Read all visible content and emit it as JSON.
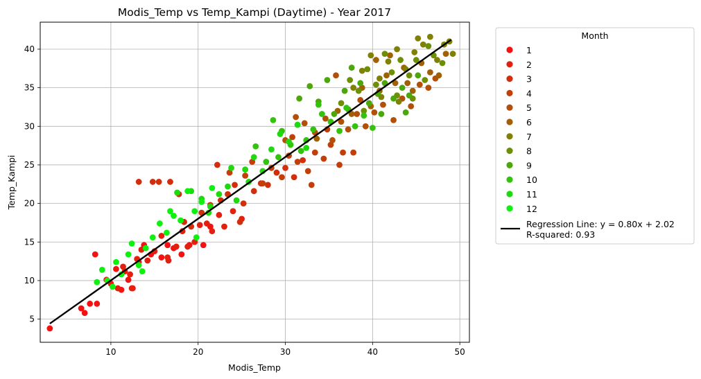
{
  "chart_data": {
    "type": "scatter",
    "title": "Modis_Temp vs Temp_Kampi (Daytime) - Year 2017",
    "xlabel": "Modis_Temp",
    "ylabel": "Temp_Kampi",
    "xlim": [
      1.9,
      51.1
    ],
    "ylim": [
      2.0,
      43.5
    ],
    "xticks": [
      10,
      20,
      30,
      40,
      50
    ],
    "yticks": [
      5,
      10,
      15,
      20,
      25,
      30,
      35,
      40
    ],
    "grid": true,
    "legend": {
      "title": "Month",
      "placement": "outside-right",
      "entries": [
        "1",
        "2",
        "3",
        "4",
        "5",
        "6",
        "7",
        "8",
        "9",
        "10",
        "11",
        "12"
      ],
      "regression_label": "Regression Line: y = 0.80x + 2.02",
      "r_squared_label": "R-squared: 0.93"
    },
    "month_colors": [
      "#f21212",
      "#e31f0f",
      "#d22e0c",
      "#c23f0a",
      "#b24f08",
      "#a26005",
      "#7f8004",
      "#6d8f06",
      "#4ca70a",
      "#34c30c",
      "#1ed90e",
      "#0ef10f"
    ],
    "regression": {
      "slope": 0.8,
      "intercept": 2.02,
      "x_range": [
        3.0,
        49.0
      ],
      "color": "#000000"
    },
    "series": [
      {
        "name": "1",
        "points": [
          [
            3,
            3.8
          ],
          [
            6.6,
            6.4
          ],
          [
            7,
            5.8
          ],
          [
            8.2,
            13.4
          ],
          [
            7.6,
            7.0
          ],
          [
            8.4,
            7.0
          ],
          [
            9.5,
            10.1
          ],
          [
            10,
            9.6
          ],
          [
            10.6,
            11.5
          ],
          [
            11.2,
            8.8
          ],
          [
            11.6,
            11.2
          ],
          [
            12,
            10.1
          ],
          [
            12.5,
            9.0
          ],
          [
            13.2,
            12.4
          ],
          [
            13.8,
            14.6
          ],
          [
            14.6,
            13.4
          ],
          [
            15.8,
            13.0
          ],
          [
            16.5,
            14.6
          ],
          [
            17.2,
            14.2
          ],
          [
            18.1,
            13.4
          ],
          [
            19.0,
            14.6
          ],
          [
            20.6,
            14.6
          ],
          [
            21.4,
            17.0
          ]
        ]
      },
      {
        "name": "2",
        "points": [
          [
            10.8,
            9.0
          ],
          [
            11.4,
            11.8
          ],
          [
            12.2,
            10.8
          ],
          [
            13,
            12.8
          ],
          [
            13.5,
            14.0
          ],
          [
            14.2,
            12.6
          ],
          [
            15,
            13.8
          ],
          [
            15.8,
            15.8
          ],
          [
            16.6,
            12.6
          ],
          [
            17.5,
            14.4
          ],
          [
            18.2,
            16.4
          ],
          [
            18.8,
            14.4
          ],
          [
            19.6,
            15.0
          ],
          [
            20.2,
            17.2
          ],
          [
            21.0,
            17.4
          ],
          [
            21.6,
            16.4
          ],
          [
            22.4,
            18.5
          ],
          [
            23,
            17.0
          ],
          [
            24,
            19.0
          ],
          [
            25,
            18.0
          ],
          [
            12.4,
            9.0
          ],
          [
            16.5,
            13.0
          ]
        ]
      },
      {
        "name": "3",
        "points": [
          [
            13.2,
            22.8
          ],
          [
            14.8,
            22.8
          ],
          [
            15.5,
            22.8
          ],
          [
            16.8,
            22.8
          ],
          [
            17.8,
            21.2
          ],
          [
            18.4,
            17.6
          ],
          [
            19.2,
            17.0
          ],
          [
            20.4,
            18.8
          ],
          [
            21.4,
            19.8
          ],
          [
            22.6,
            20.4
          ],
          [
            23.4,
            21.2
          ],
          [
            24.2,
            22.4
          ],
          [
            25.2,
            20.0
          ],
          [
            26.4,
            21.6
          ],
          [
            27.2,
            22.6
          ],
          [
            28,
            22.4
          ],
          [
            29,
            24.0
          ],
          [
            30,
            24.6
          ],
          [
            31,
            23.4
          ],
          [
            32,
            25.6
          ],
          [
            22.2,
            25.0
          ],
          [
            24.8,
            17.6
          ]
        ]
      },
      {
        "name": "4",
        "points": [
          [
            23.6,
            24.0
          ],
          [
            25.4,
            23.6
          ],
          [
            26.2,
            25.4
          ],
          [
            27.4,
            22.6
          ],
          [
            28.4,
            24.6
          ],
          [
            29.6,
            23.4
          ],
          [
            30.4,
            26.2
          ],
          [
            31.4,
            25.4
          ],
          [
            32.6,
            24.2
          ],
          [
            33.4,
            26.6
          ],
          [
            34.4,
            25.8
          ],
          [
            35.2,
            27.6
          ],
          [
            36.6,
            26.6
          ],
          [
            37.8,
            26.6
          ],
          [
            33,
            22.4
          ],
          [
            30.8,
            28.6
          ],
          [
            34.8,
            29.6
          ],
          [
            36.2,
            25.0
          ]
        ]
      },
      {
        "name": "5",
        "points": [
          [
            30,
            28.2
          ],
          [
            31.2,
            31.2
          ],
          [
            32.2,
            30.4
          ],
          [
            33.4,
            29.2
          ],
          [
            34.6,
            31.0
          ],
          [
            35.4,
            28.2
          ],
          [
            36.4,
            30.6
          ],
          [
            37.2,
            29.6
          ],
          [
            38.2,
            31.6
          ],
          [
            39.2,
            30.0
          ],
          [
            40.2,
            31.8
          ],
          [
            41.2,
            32.8
          ],
          [
            42.4,
            30.8
          ],
          [
            43.4,
            33.6
          ],
          [
            44.4,
            32.6
          ],
          [
            45.4,
            35.4
          ],
          [
            46.4,
            35.0
          ],
          [
            47.2,
            36.2
          ],
          [
            35.8,
            36.6
          ],
          [
            38.6,
            33.4
          ]
        ]
      },
      {
        "name": "6",
        "points": [
          [
            33.6,
            28.4
          ],
          [
            36,
            32.0
          ],
          [
            37.6,
            31.6
          ],
          [
            38.8,
            35.0
          ],
          [
            39.8,
            32.6
          ],
          [
            40.8,
            34.6
          ],
          [
            41.6,
            36.6
          ],
          [
            42.6,
            35.6
          ],
          [
            43.6,
            37.6
          ],
          [
            44.6,
            34.6
          ],
          [
            45.6,
            38.2
          ],
          [
            46.6,
            37.0
          ],
          [
            47.6,
            36.6
          ],
          [
            48.4,
            39.4
          ],
          [
            40.4,
            38.6
          ],
          [
            42,
            39.2
          ],
          [
            44,
            35.6
          ]
        ]
      },
      {
        "name": "7",
        "points": [
          [
            37.8,
            35.0
          ],
          [
            38.8,
            37.2
          ],
          [
            39.8,
            39.2
          ],
          [
            40.8,
            36.2
          ],
          [
            41.8,
            38.4
          ],
          [
            42.8,
            40.0
          ],
          [
            43.8,
            37.4
          ],
          [
            44.8,
            39.6
          ],
          [
            45.8,
            40.6
          ],
          [
            46.6,
            41.6
          ],
          [
            47.4,
            38.6
          ],
          [
            48.2,
            40.6
          ],
          [
            48.8,
            41.0
          ],
          [
            49.2,
            39.4
          ],
          [
            45.2,
            41.4
          ],
          [
            43,
            33.2
          ],
          [
            41,
            33.8
          ]
        ]
      },
      {
        "name": "8",
        "points": [
          [
            36.4,
            33.0
          ],
          [
            37.4,
            36.0
          ],
          [
            38.4,
            34.6
          ],
          [
            39.4,
            37.4
          ],
          [
            40.4,
            35.4
          ],
          [
            41.4,
            39.4
          ],
          [
            42.2,
            37.0
          ],
          [
            43.2,
            38.6
          ],
          [
            44.2,
            36.6
          ],
          [
            45,
            38.6
          ],
          [
            46,
            36.0
          ],
          [
            47,
            39.2
          ],
          [
            48,
            38.2
          ],
          [
            44.6,
            33.6
          ],
          [
            39,
            32.0
          ],
          [
            42.8,
            34.0
          ],
          [
            46.4,
            40.4
          ]
        ]
      },
      {
        "name": "9",
        "points": [
          [
            31.6,
            33.6
          ],
          [
            32.8,
            35.2
          ],
          [
            33.8,
            33.2
          ],
          [
            34.8,
            36.0
          ],
          [
            35.6,
            31.6
          ],
          [
            36.8,
            34.6
          ],
          [
            37.6,
            37.6
          ],
          [
            38.6,
            35.6
          ],
          [
            39.6,
            33.0
          ],
          [
            40.6,
            34.2
          ],
          [
            41.4,
            35.6
          ],
          [
            42.4,
            33.6
          ],
          [
            43.4,
            35.0
          ],
          [
            44.2,
            34.0
          ],
          [
            45.2,
            36.6
          ],
          [
            41,
            31.6
          ],
          [
            37.2,
            32.2
          ],
          [
            43.8,
            31.8
          ]
        ]
      },
      {
        "name": "10",
        "points": [
          [
            26.6,
            27.4
          ],
          [
            28.6,
            30.8
          ],
          [
            29.6,
            29.4
          ],
          [
            30.6,
            27.6
          ],
          [
            31.4,
            30.2
          ],
          [
            32.4,
            28.2
          ],
          [
            33.2,
            29.6
          ],
          [
            34.2,
            31.6
          ],
          [
            35.2,
            30.6
          ],
          [
            36.2,
            29.4
          ],
          [
            37,
            32.4
          ],
          [
            38,
            30.0
          ],
          [
            39,
            31.4
          ],
          [
            40,
            29.8
          ],
          [
            27.8,
            25.4
          ],
          [
            29.2,
            26.0
          ],
          [
            31.8,
            26.8
          ],
          [
            33.8,
            32.8
          ]
        ]
      },
      {
        "name": "11",
        "points": [
          [
            17.6,
            21.4
          ],
          [
            19.2,
            21.6
          ],
          [
            20.4,
            20.6
          ],
          [
            21.4,
            19.6
          ],
          [
            22.4,
            21.2
          ],
          [
            23.4,
            22.2
          ],
          [
            24.4,
            20.4
          ],
          [
            25.4,
            24.4
          ],
          [
            26.4,
            26.0
          ],
          [
            27.4,
            24.2
          ],
          [
            28.4,
            27.0
          ],
          [
            29.4,
            29.0
          ],
          [
            30.4,
            28.0
          ],
          [
            31.4,
            30.2
          ],
          [
            32.4,
            27.2
          ],
          [
            23.8,
            24.6
          ],
          [
            21.2,
            18.8
          ],
          [
            25.8,
            22.8
          ]
        ]
      },
      {
        "name": "12",
        "points": [
          [
            8.4,
            9.8
          ],
          [
            9,
            11.4
          ],
          [
            9.6,
            10.0
          ],
          [
            10.6,
            12.4
          ],
          [
            11.2,
            10.8
          ],
          [
            12,
            13.4
          ],
          [
            12.4,
            14.8
          ],
          [
            13.2,
            12.0
          ],
          [
            14,
            14.2
          ],
          [
            14.8,
            15.6
          ],
          [
            15.6,
            17.4
          ],
          [
            16.4,
            16.2
          ],
          [
            17.2,
            18.4
          ],
          [
            18,
            17.8
          ],
          [
            18.8,
            21.6
          ],
          [
            19.6,
            19.0
          ],
          [
            20.4,
            20.2
          ],
          [
            21.6,
            22.0
          ],
          [
            16.8,
            19.0
          ],
          [
            13.6,
            11.2
          ],
          [
            10.2,
            9.2
          ],
          [
            19.8,
            15.6
          ]
        ]
      }
    ]
  }
}
